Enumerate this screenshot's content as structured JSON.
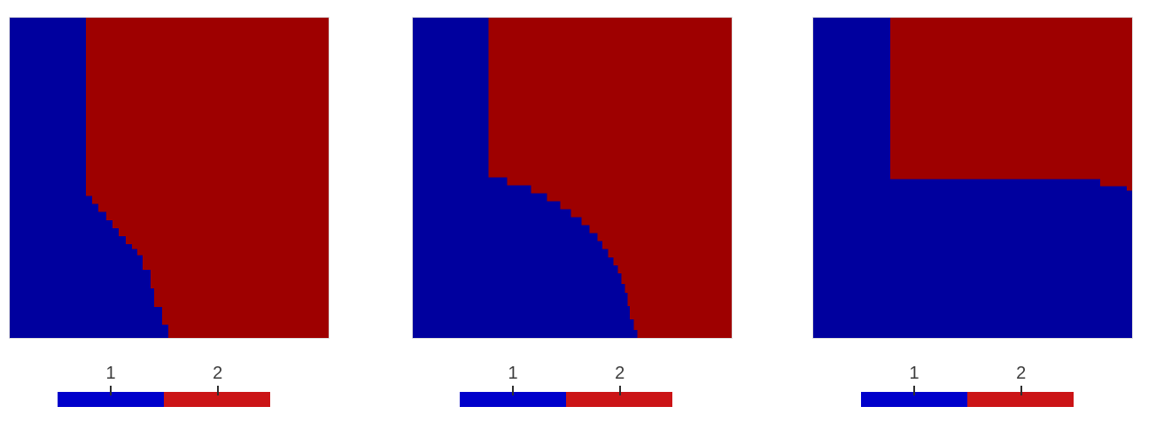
{
  "app": {
    "background_color": "#ffffff",
    "view_count": 3
  },
  "chart_data": {
    "type": "heatmap",
    "description": "Three 2D cell-wise material/region plots on a structured grid. Material 1 is dark blue, material 2 is dark red. Each plot has a discrete two-color scalar bar legend below it.",
    "values": [
      1,
      2
    ],
    "value_colors_plot": {
      "1": "#00009E",
      "2": "#9E0000"
    },
    "legend_position": "bottom",
    "grid": false,
    "axes_visible": false,
    "colorbar": {
      "labels": [
        "1",
        "2"
      ],
      "colors": [
        "#0000CB",
        "#CB1416"
      ],
      "tick_color": "#2e2e2e",
      "label_color": "#3b3b3b"
    },
    "panels": [
      {
        "name": "left-plot",
        "background_value": 2,
        "overlay_value": 1,
        "overlay_polygon": [
          [
            0.0,
            0.0
          ],
          [
            0.239,
            0.0
          ],
          [
            0.239,
            0.556
          ],
          [
            0.258,
            0.556
          ],
          [
            0.258,
            0.582
          ],
          [
            0.278,
            0.582
          ],
          [
            0.278,
            0.607
          ],
          [
            0.303,
            0.607
          ],
          [
            0.303,
            0.633
          ],
          [
            0.322,
            0.633
          ],
          [
            0.322,
            0.658
          ],
          [
            0.342,
            0.658
          ],
          [
            0.342,
            0.683
          ],
          [
            0.364,
            0.683
          ],
          [
            0.364,
            0.707
          ],
          [
            0.383,
            0.707
          ],
          [
            0.383,
            0.723
          ],
          [
            0.4,
            0.723
          ],
          [
            0.4,
            0.742
          ],
          [
            0.417,
            0.742
          ],
          [
            0.417,
            0.787
          ],
          [
            0.442,
            0.787
          ],
          [
            0.442,
            0.845
          ],
          [
            0.453,
            0.845
          ],
          [
            0.453,
            0.903
          ],
          [
            0.478,
            0.903
          ],
          [
            0.478,
            0.958
          ],
          [
            0.497,
            0.958
          ],
          [
            0.497,
            1.0
          ],
          [
            0.0,
            1.0
          ]
        ]
      },
      {
        "name": "middle-plot",
        "background_value": 2,
        "overlay_value": 1,
        "overlay_polygon": [
          [
            0.0,
            0.0
          ],
          [
            0.238,
            0.0
          ],
          [
            0.238,
            0.499
          ],
          [
            0.296,
            0.499
          ],
          [
            0.296,
            0.524
          ],
          [
            0.371,
            0.524
          ],
          [
            0.371,
            0.548
          ],
          [
            0.421,
            0.548
          ],
          [
            0.421,
            0.573
          ],
          [
            0.463,
            0.573
          ],
          [
            0.463,
            0.598
          ],
          [
            0.496,
            0.598
          ],
          [
            0.496,
            0.623
          ],
          [
            0.529,
            0.623
          ],
          [
            0.529,
            0.648
          ],
          [
            0.554,
            0.648
          ],
          [
            0.554,
            0.673
          ],
          [
            0.579,
            0.673
          ],
          [
            0.579,
            0.698
          ],
          [
            0.595,
            0.698
          ],
          [
            0.595,
            0.723
          ],
          [
            0.612,
            0.723
          ],
          [
            0.612,
            0.748
          ],
          [
            0.629,
            0.748
          ],
          [
            0.629,
            0.773
          ],
          [
            0.643,
            0.773
          ],
          [
            0.643,
            0.798
          ],
          [
            0.654,
            0.798
          ],
          [
            0.654,
            0.831
          ],
          [
            0.665,
            0.831
          ],
          [
            0.665,
            0.859
          ],
          [
            0.673,
            0.859
          ],
          [
            0.673,
            0.9
          ],
          [
            0.681,
            0.9
          ],
          [
            0.681,
            0.942
          ],
          [
            0.693,
            0.942
          ],
          [
            0.693,
            0.975
          ],
          [
            0.704,
            0.975
          ],
          [
            0.704,
            1.0
          ],
          [
            0.0,
            1.0
          ]
        ]
      },
      {
        "name": "right-plot",
        "background_value": 1,
        "overlay_value": 2,
        "overlay_polygon": [
          [
            0.241,
            0.0
          ],
          [
            1.0,
            0.0
          ],
          [
            1.0,
            0.54
          ],
          [
            0.983,
            0.54
          ],
          [
            0.983,
            0.526
          ],
          [
            0.9,
            0.526
          ],
          [
            0.9,
            0.504
          ],
          [
            0.241,
            0.504
          ]
        ]
      }
    ]
  }
}
